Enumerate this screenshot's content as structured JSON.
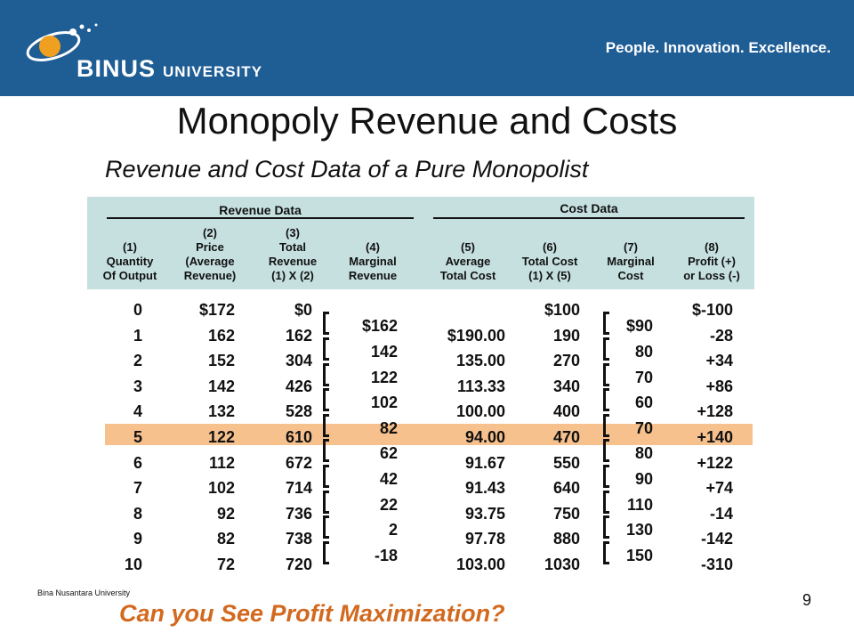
{
  "header": {
    "logo_main": "BINUS",
    "logo_sub": "UNIVERSITY",
    "tagline": "People. Innovation. Excellence."
  },
  "title": "Monopoly Revenue and Costs",
  "subtitle": "Revenue and Cost Data of a Pure Monopolist",
  "groups": {
    "revenue": "Revenue Data",
    "cost": "Cost Data"
  },
  "columns": [
    [
      "(1)",
      "Quantity",
      "Of Output"
    ],
    [
      "(2)",
      "Price",
      "(Average",
      "Revenue)"
    ],
    [
      "(3)",
      "Total",
      "Revenue",
      "(1) X (2)"
    ],
    [
      "(4)",
      "Marginal",
      "Revenue"
    ],
    [
      "(5)",
      "Average",
      "Total Cost"
    ],
    [
      "(6)",
      "Total Cost",
      "(1) X (5)"
    ],
    [
      "(7)",
      "Marginal",
      "Cost"
    ],
    [
      "(8)",
      "Profit (+)",
      "or Loss  (-)"
    ]
  ],
  "quantity": [
    "0",
    "1",
    "2",
    "3",
    "4",
    "5",
    "6",
    "7",
    "8",
    "9",
    "10"
  ],
  "price": [
    "$172",
    "162",
    "152",
    "142",
    "132",
    "122",
    "112",
    "102",
    "92",
    "82",
    "72"
  ],
  "total_revenue": [
    "$0",
    "162",
    "304",
    "426",
    "528",
    "610",
    "672",
    "714",
    "736",
    "738",
    "720"
  ],
  "marginal_revenue": [
    "$162",
    "142",
    "122",
    "102",
    "82",
    "62",
    "42",
    "22",
    "2",
    "-18"
  ],
  "average_total_cost": [
    "",
    "$190.00",
    "135.00",
    "113.33",
    "100.00",
    "94.00",
    "91.67",
    "91.43",
    "93.75",
    "97.78",
    "103.00"
  ],
  "total_cost": [
    "$100",
    "190",
    "270",
    "340",
    "400",
    "470",
    "550",
    "640",
    "750",
    "880",
    "1030"
  ],
  "marginal_cost": [
    "$90",
    "80",
    "70",
    "60",
    "70",
    "80",
    "90",
    "110",
    "130",
    "150"
  ],
  "profit": [
    "$-100",
    "-28",
    "+34",
    "+86",
    "+128",
    "+140",
    "+122",
    "+74",
    "-14",
    "-142",
    "-310"
  ],
  "highlight_row_index": 5,
  "footer": {
    "org": "Bina Nusantara University",
    "question": "Can you See Profit Maximization?",
    "page": "9"
  }
}
